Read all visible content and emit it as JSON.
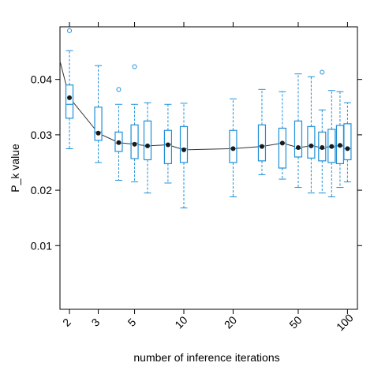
{
  "chart_data": {
    "type": "box",
    "xlabel": "number of inference iterations",
    "ylabel": "P_k value",
    "x_scale": "log",
    "xlim": [
      1.75,
      115
    ],
    "ylim": [
      -0.0015,
      0.0495
    ],
    "x_ticks": [
      {
        "value": 2,
        "label": "2"
      },
      {
        "value": 3,
        "label": "3"
      },
      {
        "value": 5,
        "label": "5"
      },
      {
        "value": 10,
        "label": "10"
      },
      {
        "value": 20,
        "label": "20"
      },
      {
        "value": 50,
        "label": "50"
      },
      {
        "value": 100,
        "label": "100"
      }
    ],
    "y_ticks": [
      {
        "value": 0.01,
        "label": "0.01"
      },
      {
        "value": 0.02,
        "label": "0.02"
      },
      {
        "value": 0.03,
        "label": "0.03"
      },
      {
        "value": 0.04,
        "label": "0.04"
      }
    ],
    "grid": false,
    "colors": {
      "box": "#1e90d8",
      "mean": "#1a1a1a",
      "frame": "#000000"
    },
    "boxes": [
      {
        "x": 2,
        "whislo": 0.0275,
        "q1": 0.033,
        "med": 0.0355,
        "q3": 0.039,
        "whishi": 0.0452,
        "fliers": [
          0.0488
        ]
      },
      {
        "x": 3,
        "whislo": 0.025,
        "q1": 0.029,
        "med": 0.0305,
        "q3": 0.035,
        "whishi": 0.0425,
        "fliers": []
      },
      {
        "x": 4,
        "whislo": 0.0218,
        "q1": 0.027,
        "med": 0.0285,
        "q3": 0.0305,
        "whishi": 0.0355,
        "fliers": [
          0.0382
        ]
      },
      {
        "x": 5,
        "whislo": 0.0215,
        "q1": 0.0257,
        "med": 0.0285,
        "q3": 0.0318,
        "whishi": 0.0355,
        "fliers": [
          0.0423
        ]
      },
      {
        "x": 6,
        "whislo": 0.0195,
        "q1": 0.0255,
        "med": 0.028,
        "q3": 0.0325,
        "whishi": 0.0358,
        "fliers": []
      },
      {
        "x": 8,
        "whislo": 0.0213,
        "q1": 0.0248,
        "med": 0.0283,
        "q3": 0.0308,
        "whishi": 0.0355,
        "fliers": []
      },
      {
        "x": 10,
        "whislo": 0.0168,
        "q1": 0.025,
        "med": 0.0275,
        "q3": 0.0315,
        "whishi": 0.0357,
        "fliers": []
      },
      {
        "x": 20,
        "whislo": 0.0188,
        "q1": 0.025,
        "med": 0.0275,
        "q3": 0.0308,
        "whishi": 0.0365,
        "fliers": []
      },
      {
        "x": 30,
        "whislo": 0.0228,
        "q1": 0.0253,
        "med": 0.028,
        "q3": 0.0318,
        "whishi": 0.0382,
        "fliers": []
      },
      {
        "x": 40,
        "whislo": 0.022,
        "q1": 0.024,
        "med": 0.0285,
        "q3": 0.0312,
        "whishi": 0.0378,
        "fliers": []
      },
      {
        "x": 50,
        "whislo": 0.0205,
        "q1": 0.026,
        "med": 0.0275,
        "q3": 0.0325,
        "whishi": 0.041,
        "fliers": []
      },
      {
        "x": 60,
        "whislo": 0.0195,
        "q1": 0.0258,
        "med": 0.028,
        "q3": 0.0315,
        "whishi": 0.0405,
        "fliers": []
      },
      {
        "x": 70,
        "whislo": 0.0195,
        "q1": 0.0253,
        "med": 0.0275,
        "q3": 0.0305,
        "whishi": 0.0345,
        "fliers": [
          0.0413
        ]
      },
      {
        "x": 80,
        "whislo": 0.0188,
        "q1": 0.025,
        "med": 0.0278,
        "q3": 0.031,
        "whishi": 0.038,
        "fliers": []
      },
      {
        "x": 90,
        "whislo": 0.0205,
        "q1": 0.0248,
        "med": 0.028,
        "q3": 0.0317,
        "whishi": 0.0378,
        "fliers": []
      },
      {
        "x": 100,
        "whislo": 0.0215,
        "q1": 0.0255,
        "med": 0.0275,
        "q3": 0.032,
        "whishi": 0.0358,
        "fliers": []
      }
    ],
    "mean_curve": {
      "x": [
        1.75,
        2,
        3,
        4,
        5,
        6,
        8,
        10,
        20,
        30,
        40,
        50,
        60,
        70,
        80,
        90,
        100
      ],
      "y": [
        0.0433,
        0.0367,
        0.0303,
        0.0286,
        0.0283,
        0.028,
        0.0282,
        0.0273,
        0.0275,
        0.0279,
        0.0285,
        0.0277,
        0.028,
        0.0277,
        0.0279,
        0.0281,
        0.0275
      ]
    },
    "mean_points": {
      "x": [
        2,
        3,
        4,
        5,
        6,
        8,
        10,
        20,
        30,
        40,
        50,
        60,
        70,
        80,
        90,
        100
      ],
      "y": [
        0.0367,
        0.0303,
        0.0286,
        0.0283,
        0.028,
        0.0282,
        0.0273,
        0.0275,
        0.0279,
        0.0285,
        0.0277,
        0.028,
        0.0277,
        0.0279,
        0.0281,
        0.0275
      ]
    }
  }
}
